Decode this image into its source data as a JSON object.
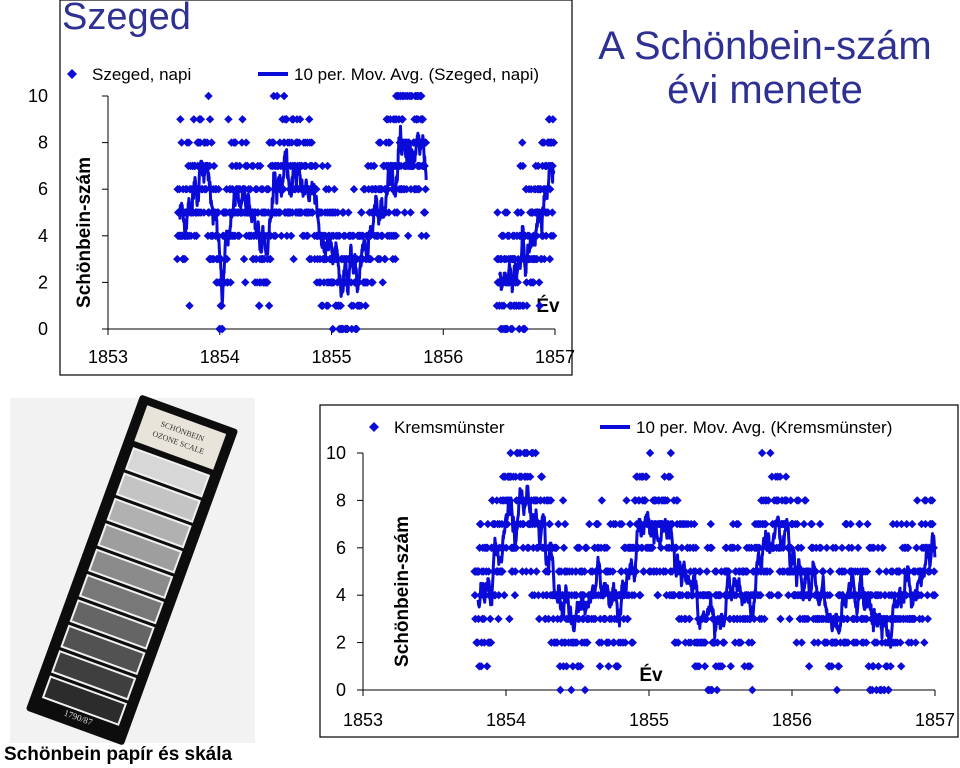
{
  "heading": "Szeged",
  "slide_title": [
    "A Schönbein-szám",
    "évi menete"
  ],
  "photo_caption": "Schönbein papír és skála",
  "photo": {
    "label_text": [
      "SCHÖNBEIN",
      "OZONE SCALE"
    ],
    "stamp": "1790/87"
  },
  "colors": {
    "title": "#2e3192",
    "series": "#0b0bd9",
    "frame": "#000000"
  },
  "chart_data": [
    {
      "type": "scatter",
      "xlabel": "Év",
      "ylabel": "Schönbein-szám",
      "ylim": [
        0,
        10
      ],
      "yticks": [
        "0",
        "2",
        "4",
        "6",
        "8",
        "10"
      ],
      "xticks": [
        "1853",
        "1854",
        "1855",
        "1856",
        "1857"
      ],
      "xlim": [
        1853,
        1857
      ],
      "grid": false,
      "legend_position": "top",
      "series": [
        {
          "name": "Szeged, napi",
          "kind": "points",
          "values_description_free": true
        },
        {
          "name": "10 per. Mov. Avg. (Szeged, napi)",
          "kind": "line"
        }
      ],
      "segments": [
        {
          "x_start": 1853.62,
          "x_end": 1855.85
        },
        {
          "x_start": 1856.48,
          "x_end": 1856.99
        }
      ],
      "moving_average_anchor": {
        "x": [
          1853.62,
          1853.7,
          1853.8,
          1853.9,
          1854.0,
          1854.1,
          1854.2,
          1854.3,
          1854.4,
          1854.5,
          1854.6,
          1854.7,
          1854.8,
          1854.9,
          1855.0,
          1855.1,
          1855.2,
          1855.3,
          1855.4,
          1855.5,
          1855.6,
          1855.7,
          1855.85,
          1856.48,
          1856.6,
          1856.7,
          1856.8,
          1856.9,
          1856.99
        ],
        "y": [
          5.5,
          5.0,
          6.5,
          6.0,
          2.5,
          4.5,
          5.5,
          4.5,
          3.5,
          6.5,
          7.0,
          6.5,
          6.0,
          4.0,
          3.0,
          2.0,
          2.5,
          3.5,
          4.5,
          6.0,
          7.0,
          8.0,
          7.0,
          1.5,
          2.0,
          3.0,
          4.0,
          5.5,
          7.0
        ]
      },
      "daily_seed": 11
    },
    {
      "type": "scatter",
      "xlabel": "Év",
      "ylabel": "Schönbein-szám",
      "ylim": [
        0,
        10
      ],
      "yticks": [
        "0",
        "2",
        "4",
        "6",
        "8",
        "10"
      ],
      "xticks": [
        "1853",
        "1854",
        "1855",
        "1856",
        "1857"
      ],
      "xlim": [
        1853,
        1857
      ],
      "grid": false,
      "legend_position": "top",
      "series": [
        {
          "name": "Kremsmünster",
          "kind": "points"
        },
        {
          "name": "10 per. Mov. Avg. (Kremsmünster)",
          "kind": "line"
        }
      ],
      "segments": [
        {
          "x_start": 1853.78,
          "x_end": 1857.0
        }
      ],
      "moving_average_anchor": {
        "x": [
          1853.78,
          1853.9,
          1854.0,
          1854.1,
          1854.2,
          1854.3,
          1854.4,
          1854.5,
          1854.6,
          1854.7,
          1854.8,
          1854.9,
          1855.0,
          1855.1,
          1855.2,
          1855.3,
          1855.4,
          1855.5,
          1855.6,
          1855.7,
          1855.8,
          1855.9,
          1856.0,
          1856.1,
          1856.2,
          1856.3,
          1856.4,
          1856.5,
          1856.6,
          1856.7,
          1856.8,
          1856.9,
          1857.0
        ],
        "y": [
          3.5,
          4.5,
          7.0,
          8.5,
          7.0,
          5.5,
          4.0,
          3.0,
          4.5,
          5.0,
          3.5,
          6.0,
          7.0,
          6.5,
          5.5,
          4.0,
          3.0,
          3.5,
          4.0,
          3.5,
          6.0,
          6.5,
          5.5,
          4.5,
          3.5,
          3.0,
          4.0,
          4.5,
          3.0,
          3.5,
          4.0,
          5.0,
          6.0
        ]
      },
      "daily_seed": 29
    }
  ]
}
